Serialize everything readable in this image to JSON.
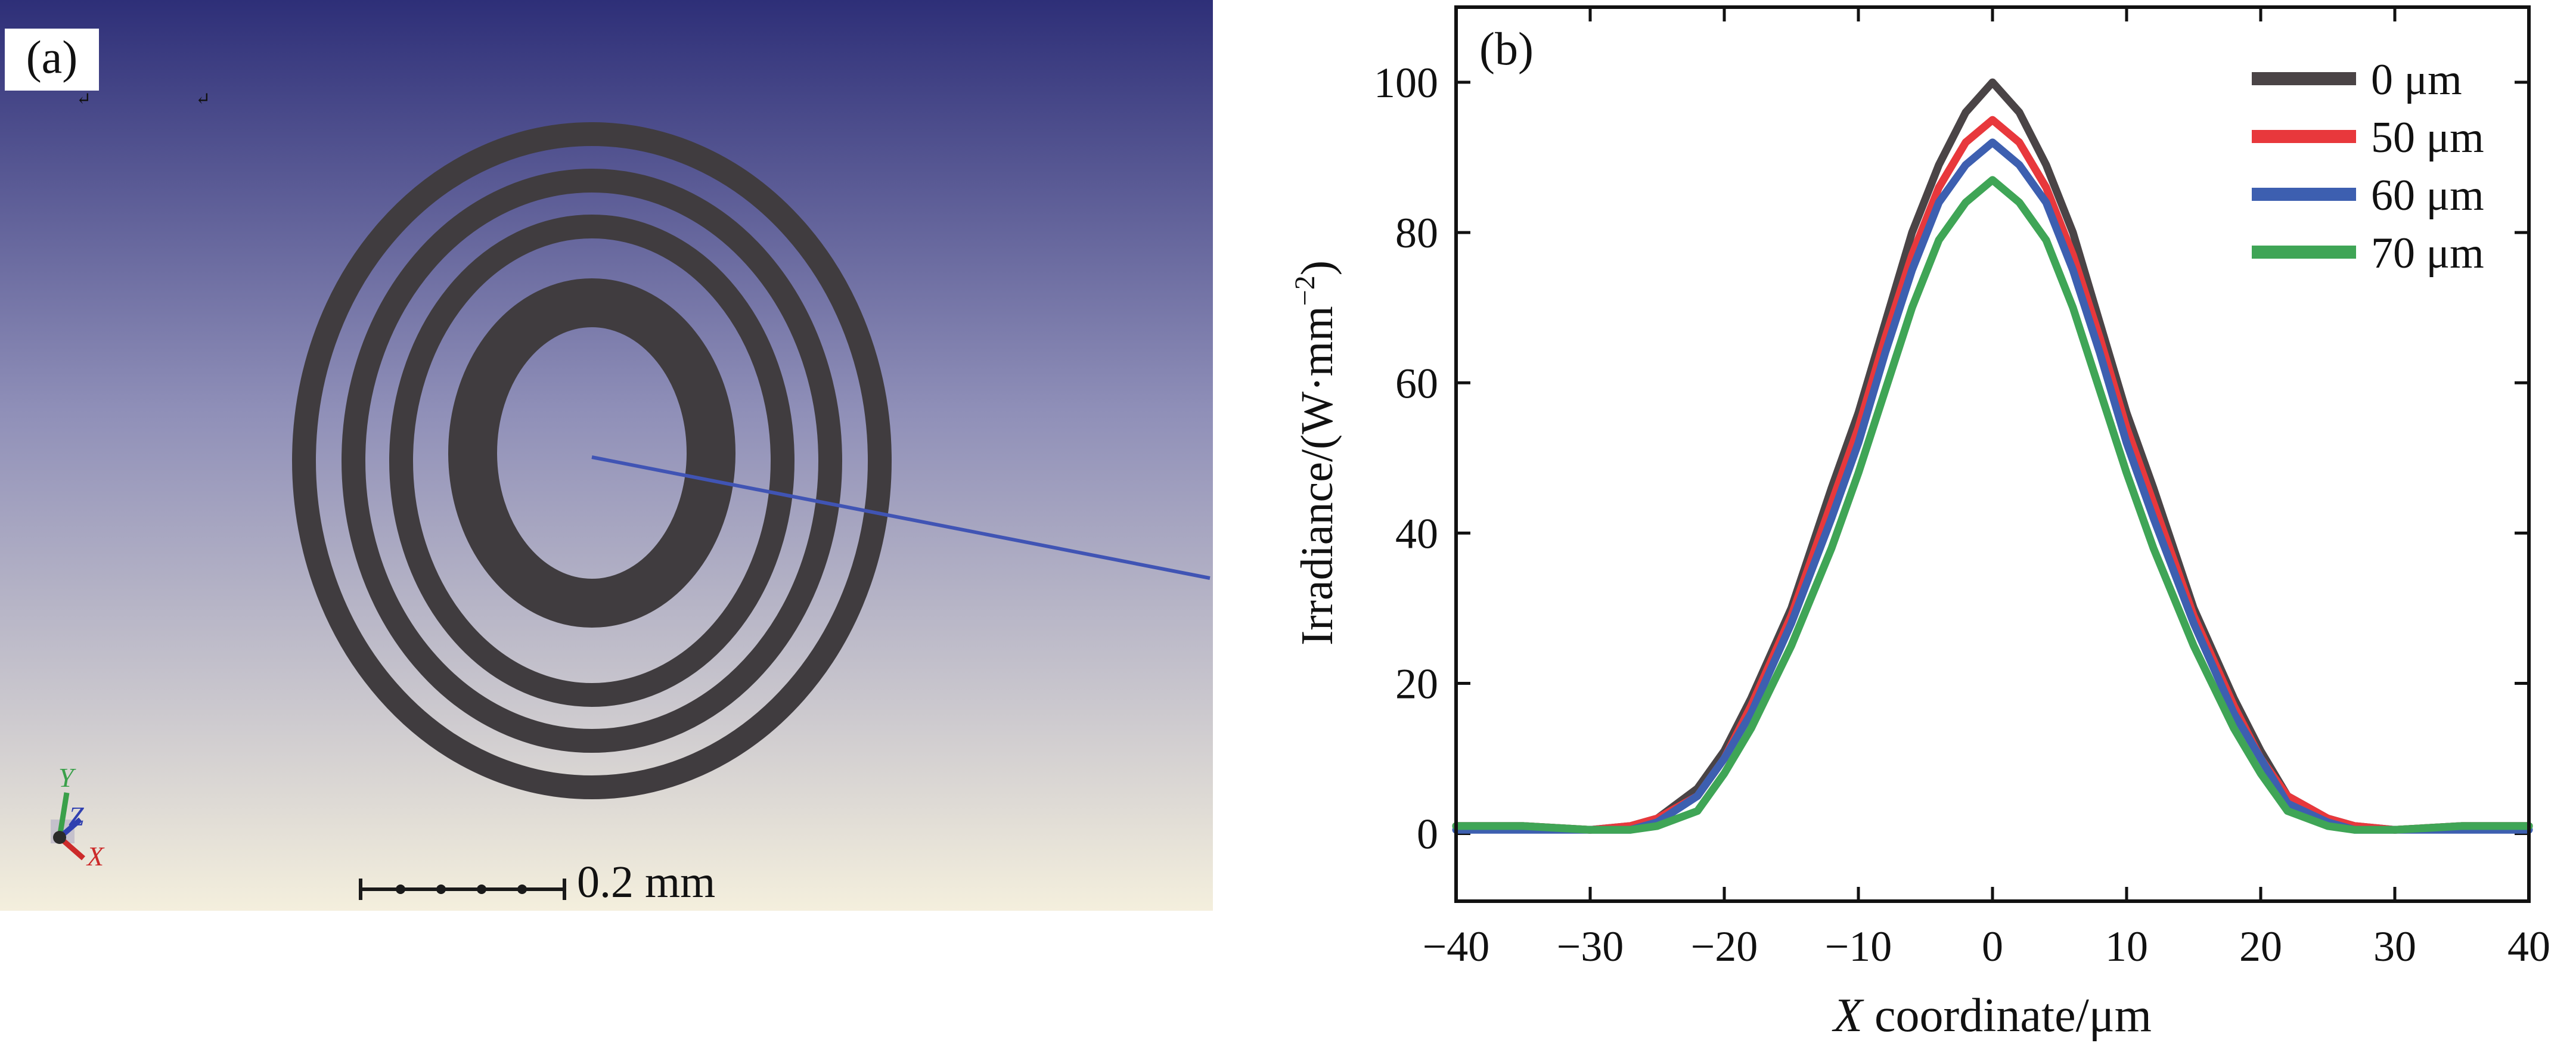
{
  "panel_a": {
    "label": "(a)",
    "scale_bar_label": "0.2 mm",
    "axis_triad": {
      "y": "Y",
      "z": "Z",
      "x": "X"
    },
    "colors": {
      "bg_top": "#2e2f78",
      "bg_mid": "#8f8fb8",
      "bg_bottom": "#f4efdd",
      "rings": "#403c3f",
      "ray": "#4054b4"
    }
  },
  "chart_data": {
    "type": "line",
    "panel_label": "(b)",
    "xlabel_italic": "X",
    "xlabel_rest": " coordinate/μm",
    "ylabel": "Irradiance/(W·mm",
    "ylabel_sup": "−2",
    "ylabel_close": ")",
    "xlim": [
      -40,
      40
    ],
    "ylim": [
      -9,
      110
    ],
    "x_ticks": [
      -40,
      -30,
      -20,
      -10,
      0,
      10,
      20,
      30,
      40
    ],
    "x_tick_labels": [
      "−40",
      "−30",
      "−20",
      "−10",
      "0",
      "10",
      "20",
      "30",
      "40"
    ],
    "y_ticks": [
      0,
      20,
      40,
      60,
      80,
      100
    ],
    "y_tick_labels": [
      "0",
      "20",
      "40",
      "60",
      "80",
      "100"
    ],
    "legend_position": "top-right",
    "x": [
      -40,
      -35,
      -30,
      -27,
      -25,
      -22,
      -20,
      -18,
      -15,
      -12,
      -10,
      -8,
      -6,
      -4,
      -2,
      0,
      2,
      4,
      6,
      8,
      10,
      12,
      15,
      18,
      20,
      22,
      25,
      27,
      30,
      35,
      40
    ],
    "series": [
      {
        "name": "0 μm",
        "color": "#4a4446",
        "values": [
          1,
          1,
          0.5,
          1,
          2,
          6,
          11,
          18,
          30,
          46,
          56,
          68,
          80,
          89,
          96,
          100,
          96,
          89,
          80,
          68,
          56,
          46,
          30,
          18,
          11,
          5,
          2,
          1,
          0.5,
          1,
          1
        ]
      },
      {
        "name": "50 μm",
        "color": "#e8383c",
        "values": [
          1,
          1,
          0.5,
          1,
          2,
          5,
          10,
          17,
          29,
          44,
          54,
          66,
          77,
          86,
          92,
          95,
          92,
          86,
          77,
          66,
          54,
          44,
          29,
          17,
          10,
          5,
          2,
          1,
          0.5,
          1,
          1
        ]
      },
      {
        "name": "60 μm",
        "color": "#3d5fb0",
        "values": [
          0.5,
          0.5,
          0.5,
          0.5,
          1.5,
          5,
          10,
          16,
          28,
          42,
          52,
          64,
          75,
          84,
          89,
          92,
          89,
          84,
          75,
          64,
          52,
          42,
          28,
          16,
          10,
          4,
          1.5,
          0.5,
          0.5,
          0.5,
          0.5
        ]
      },
      {
        "name": "70 μm",
        "color": "#3fa556",
        "values": [
          1,
          1,
          0.5,
          0.5,
          1,
          3,
          8,
          14,
          25,
          38,
          48,
          59,
          70,
          79,
          84,
          87,
          84,
          79,
          70,
          59,
          48,
          38,
          25,
          14,
          8,
          3,
          1,
          0.5,
          0.5,
          1,
          1
        ]
      }
    ]
  }
}
